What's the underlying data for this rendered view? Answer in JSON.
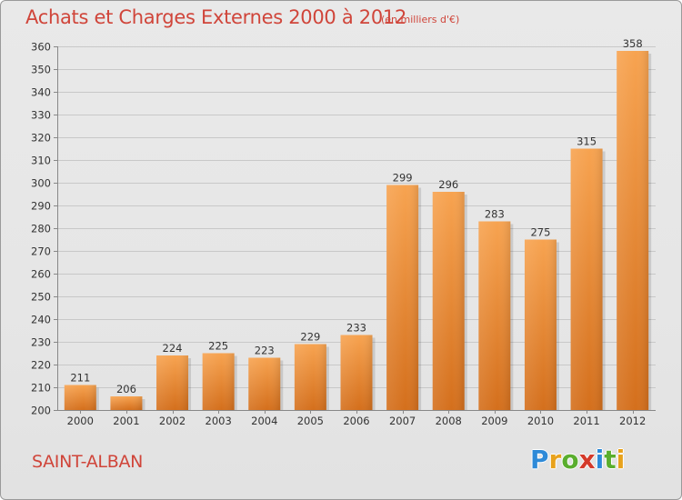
{
  "title": "Achats et Charges Externes 2000 à 2012",
  "subtitle": "(en milliers d'€)",
  "city": "SAINT-ALBAN",
  "brand": {
    "letters": [
      "P",
      "r",
      "o",
      "x",
      "i",
      "t",
      "i"
    ],
    "colors": [
      "#2e8ad8",
      "#e8a21c",
      "#5aae2e",
      "#d43a2a",
      "#2e8ad8",
      "#5aae2e",
      "#e8a21c"
    ]
  },
  "colors": {
    "bar_light": "#f7a350",
    "bar_dark": "#d46f1c",
    "title": "#d0453a",
    "grid": "#c8c8c8"
  },
  "chart_data": {
    "type": "bar",
    "categories": [
      "2000",
      "2001",
      "2002",
      "2003",
      "2004",
      "2005",
      "2006",
      "2007",
      "2008",
      "2009",
      "2010",
      "2011",
      "2012"
    ],
    "values": [
      211,
      206,
      224,
      225,
      223,
      229,
      233,
      299,
      296,
      283,
      275,
      315,
      358
    ],
    "ylim": [
      200,
      360
    ],
    "yticks": [
      200,
      210,
      220,
      230,
      240,
      250,
      260,
      270,
      280,
      290,
      300,
      310,
      320,
      330,
      340,
      350,
      360
    ],
    "grid": true,
    "data_labels": true
  }
}
